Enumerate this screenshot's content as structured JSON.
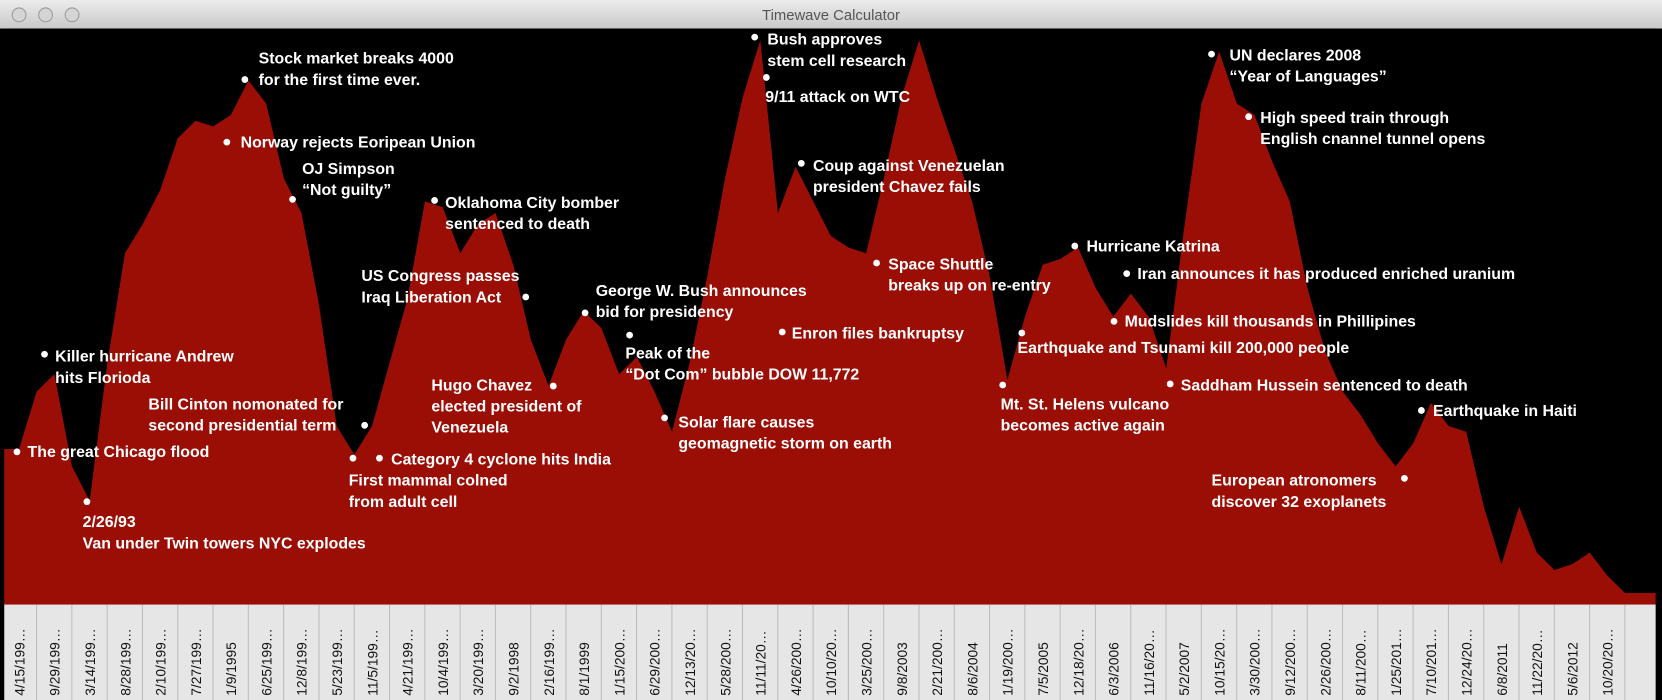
{
  "window": {
    "title": "Timewave Calculator"
  },
  "chart_data": {
    "type": "area",
    "color": "#9a0e06",
    "ylim": [
      0,
      100
    ],
    "categories": [
      "4/15/199…",
      null,
      "9/29/199…",
      null,
      "3/14/199…",
      null,
      "8/28/199…",
      null,
      "2/10/199…",
      null,
      "7/27/199…",
      null,
      "1/9/1995",
      null,
      "6/25/199…",
      null,
      "12/8/199…",
      null,
      "5/23/199…",
      null,
      "11/5/199…",
      null,
      "4/21/199…",
      null,
      "10/4/199…",
      null,
      "3/20/199…",
      null,
      "9/2/1998",
      null,
      "2/16/199…",
      null,
      "8/1/1999",
      null,
      "1/15/200…",
      null,
      "6/29/200…",
      null,
      "12/13/20…",
      null,
      "5/28/200…",
      null,
      "11/11/20…",
      null,
      "4/26/200…",
      null,
      "10/10/20…",
      null,
      "3/25/200…",
      null,
      "9/8/2003",
      null,
      "2/21/200…",
      null,
      "8/6/2004",
      null,
      "1/19/200…",
      null,
      "7/5/2005",
      null,
      "12/18/20…",
      null,
      "6/3/2006",
      null,
      "11/16/20…",
      null,
      "5/2/2007",
      null,
      "10/15/20…",
      null,
      "3/30/200…",
      null,
      "9/12/200…",
      null,
      "2/26/200…",
      null,
      "8/11/200…",
      null,
      "1/25/201…",
      null,
      "7/10/201…",
      null,
      "12/24/20…",
      null,
      "6/8/2011",
      null,
      "11/22/20…",
      null,
      "5/6/2012",
      null,
      "10/20/20…",
      null
    ],
    "values": [
      27,
      37,
      40,
      24,
      18,
      42,
      61,
      66,
      72,
      81,
      84,
      83,
      85,
      91,
      87,
      74,
      68,
      52,
      31,
      26,
      31,
      42,
      53,
      70,
      69,
      61,
      66,
      68,
      59,
      46,
      38,
      46,
      51,
      48,
      40,
      43,
      37,
      30,
      42,
      57,
      74,
      88,
      98,
      68,
      76,
      70,
      64,
      62,
      61,
      74,
      88,
      98,
      88,
      79,
      70,
      57,
      39,
      50,
      59,
      60,
      62,
      55,
      50,
      54,
      50,
      41,
      65,
      87,
      96,
      87,
      85,
      77,
      70,
      55,
      44,
      37,
      33,
      28,
      24,
      28,
      35,
      31,
      30,
      17,
      7,
      17,
      9,
      6,
      7,
      9,
      5,
      2
    ],
    "annotations": [
      {
        "lines": [
          "The great Chicago flood"
        ]
      },
      {
        "lines": [
          "Killer hurricane Andrew",
          "hits Florioda"
        ]
      },
      {
        "lines": [
          "2/26/93",
          "Van under Twin towers NYC explodes"
        ]
      },
      {
        "lines": [
          "Stock market breaks 4000",
          "for the first time ever."
        ]
      },
      {
        "lines": [
          "Norway rejects Eoripean Union"
        ]
      },
      {
        "lines": [
          "OJ Simpson",
          "“Not guilty”"
        ]
      },
      {
        "lines": [
          "Bill Cinton nomonated for",
          "second presidential term"
        ]
      },
      {
        "lines": [
          "First mammal colned",
          "from adult cell"
        ]
      },
      {
        "lines": [
          "Category 4 cyclone hits India"
        ]
      },
      {
        "lines": [
          "Oklahoma City bomber",
          "sentenced to death"
        ]
      },
      {
        "lines": [
          "US Congress passes",
          "Iraq Liberation Act"
        ]
      },
      {
        "lines": [
          "Hugo Chavez",
          "elected president of",
          "Venezuela"
        ]
      },
      {
        "lines": [
          "George W. Bush announces",
          "bid for presidency"
        ]
      },
      {
        "lines": [
          "Peak of the",
          "“Dot Com” bubble DOW 11,772"
        ]
      },
      {
        "lines": [
          "Solar flare causes",
          "geomagnetic storm on earth"
        ]
      },
      {
        "lines": [
          "Bush approves",
          "stem cell research"
        ]
      },
      {
        "lines": [
          "9/11 attack on WTC"
        ]
      },
      {
        "lines": [
          "Coup against Venezuelan",
          "president Chavez fails"
        ]
      },
      {
        "lines": [
          "Enron files bankruptsy"
        ]
      },
      {
        "lines": [
          "Space Shuttle",
          "breaks up on re-entry"
        ]
      },
      {
        "lines": [
          "Mt. St. Helens vulcano",
          "becomes active again"
        ]
      },
      {
        "lines": [
          "Earthquake and Tsunami kill 200,000 people"
        ]
      },
      {
        "lines": [
          "Hurricane Katrina"
        ]
      },
      {
        "lines": [
          "Iran announces it has produced enriched uranium"
        ]
      },
      {
        "lines": [
          "Mudslides kill thousands in Phillipines"
        ]
      },
      {
        "lines": [
          "Saddham Hussein sentenced to death"
        ]
      },
      {
        "lines": [
          "UN declares 2008",
          "“Year of Languages”"
        ]
      },
      {
        "lines": [
          "High speed train through",
          "English cnannel tunnel opens"
        ]
      },
      {
        "lines": [
          "Earthquake in Haiti"
        ]
      },
      {
        "lines": [
          "European atronomers",
          "discover 32 exoplanets"
        ]
      }
    ]
  }
}
